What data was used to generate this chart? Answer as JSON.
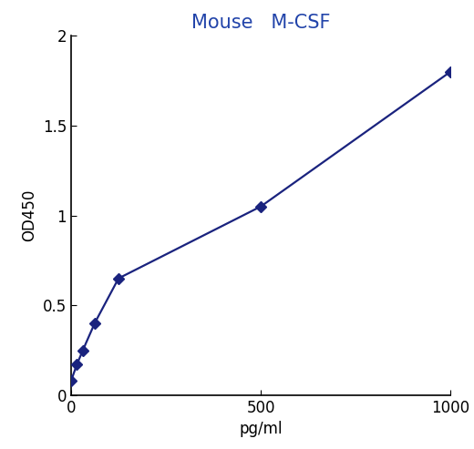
{
  "title": "Mouse   M-CSF",
  "xlabel": "pg/ml",
  "ylabel": "OD450",
  "x_data": [
    0,
    15,
    31,
    62,
    125,
    500,
    1000
  ],
  "y_data": [
    0.08,
    0.17,
    0.25,
    0.4,
    0.65,
    1.05,
    1.8
  ],
  "xlim": [
    0,
    1000
  ],
  "ylim": [
    0,
    2
  ],
  "xticks": [
    0,
    500,
    1000
  ],
  "yticks": [
    0,
    0.5,
    1.0,
    1.5,
    2.0
  ],
  "line_color": "#1a237e",
  "marker_color": "#1a237e",
  "title_color": "#2244aa",
  "marker": "D",
  "marker_size": 6,
  "line_width": 1.6,
  "title_fontsize": 15,
  "axis_label_fontsize": 12,
  "tick_fontsize": 12,
  "background_color": "#ffffff"
}
